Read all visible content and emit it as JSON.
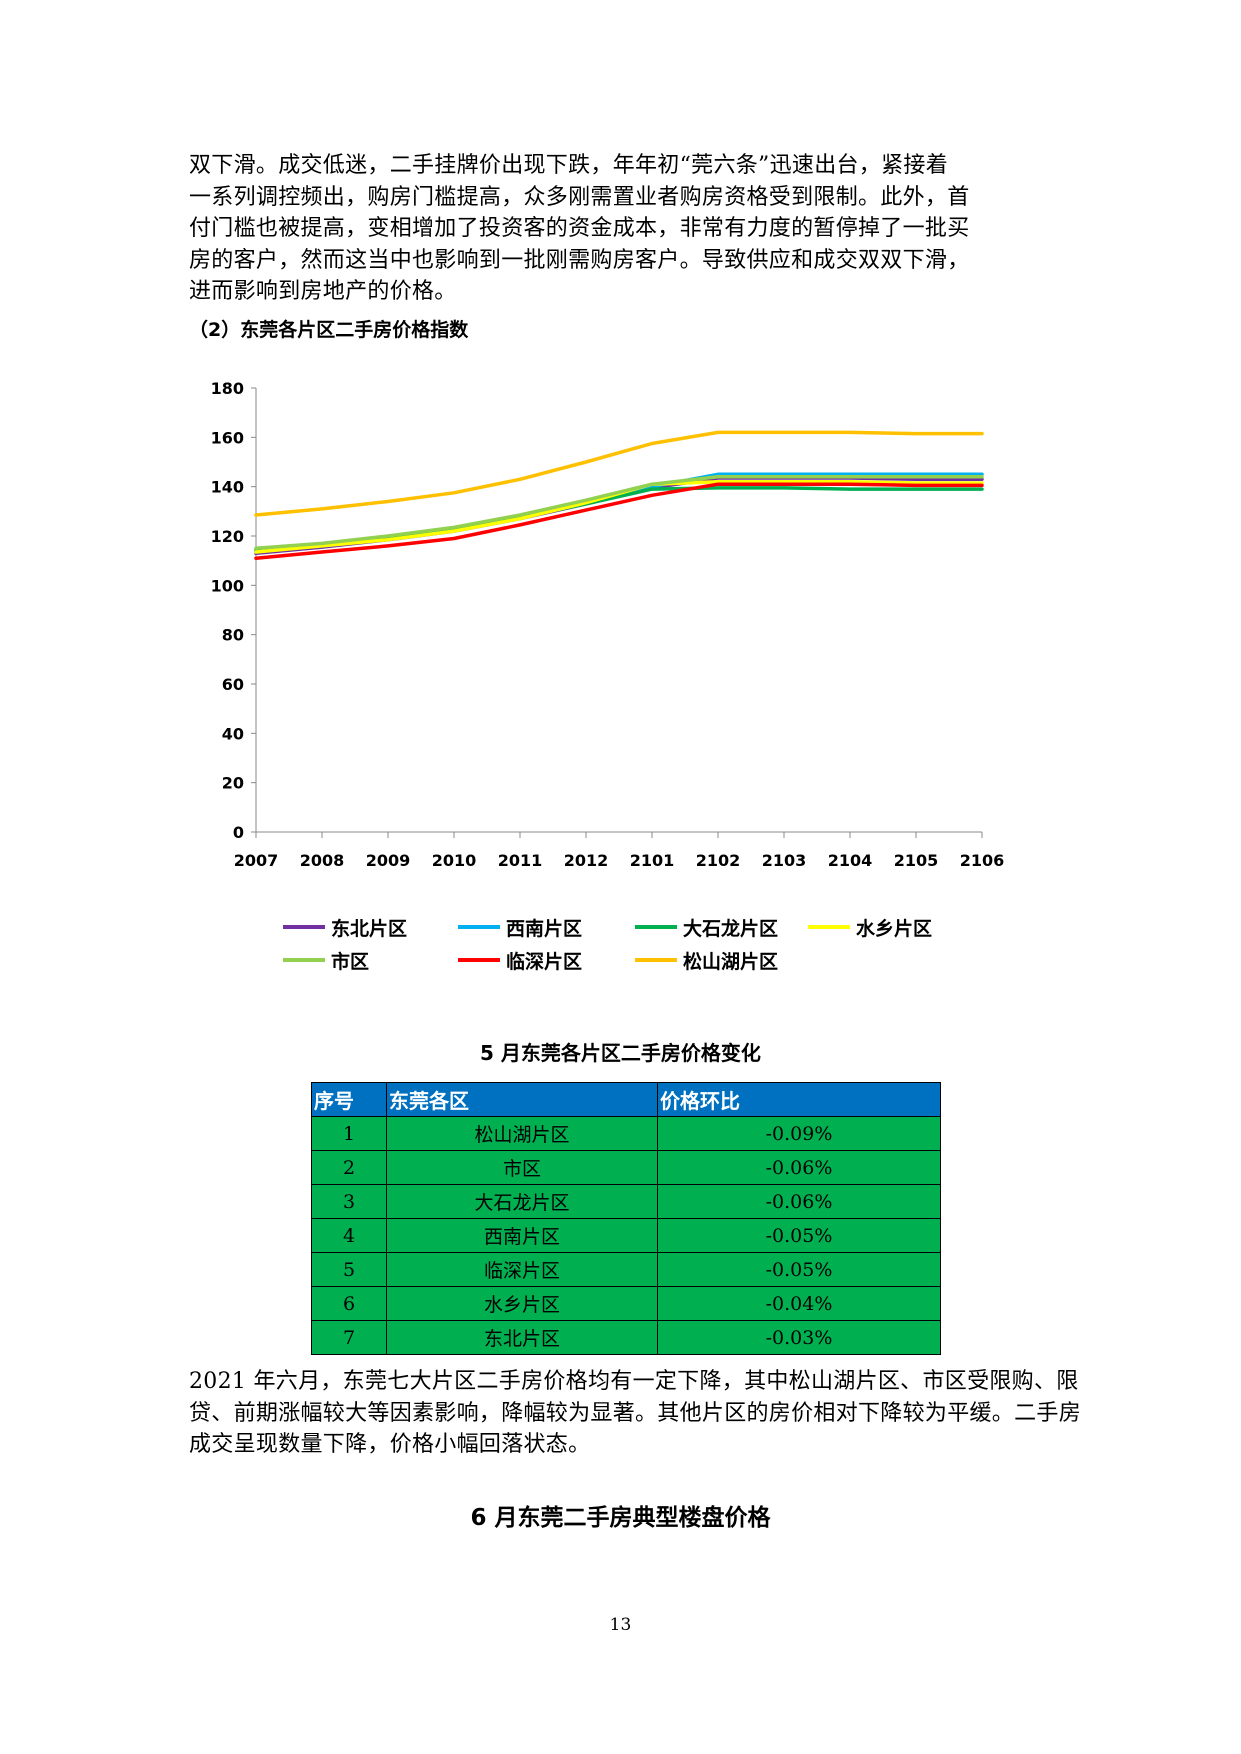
{
  "intro_lines": [
    "双下滑。成交低迷，二手挂牌价出现下跌，年年初“莞六条”迅速出台，紧接着",
    "一系列调控频出，购房门槛提高，众多刚需置业者购房资格受到限制。此外，首",
    "付门槛也被提高，变相增加了投资客的资金成本，非常有力度的暂停掉了一批买",
    "房的客户，然而这当中也影响到一批刚需购房客户。导致供应和成交双双下滑，",
    "进而影响到房地产的价格。"
  ],
  "subheading": "（2）东莞各片区二手房价格指数",
  "chart_data": {
    "type": "line",
    "title": "",
    "xlabel": "",
    "ylabel": "",
    "categories": [
      "2007",
      "2008",
      "2009",
      "2010",
      "2011",
      "2012",
      "2101",
      "2102",
      "2103",
      "2104",
      "2105",
      "2106"
    ],
    "ylim": [
      0,
      180
    ],
    "yticks": [
      0,
      20,
      40,
      60,
      80,
      100,
      120,
      140,
      160,
      180
    ],
    "grid": false,
    "legend_position": "bottom",
    "series": [
      {
        "name": "东北片区",
        "color": "#7030a0",
        "values": [
          113,
          115.5,
          118.5,
          122,
          127,
          133,
          139.5,
          143.5,
          143.5,
          143.5,
          143,
          143
        ]
      },
      {
        "name": "西南片区",
        "color": "#00b0f0",
        "values": [
          114,
          116.5,
          119,
          122.5,
          128,
          134,
          140,
          145,
          145,
          145,
          145,
          145
        ]
      },
      {
        "name": "大石龙片区",
        "color": "#00b050",
        "values": [
          114.5,
          116.5,
          119,
          122.5,
          127.5,
          133,
          139,
          139.5,
          139.5,
          139,
          139,
          139
        ]
      },
      {
        "name": "水乡片区",
        "color": "#ffff00",
        "values": [
          113.5,
          116,
          118.5,
          122,
          127,
          133.5,
          141,
          142,
          142,
          142,
          141.5,
          141.5
        ]
      },
      {
        "name": "市区",
        "color": "#92d050",
        "values": [
          115,
          117,
          120,
          123.5,
          128.5,
          134.5,
          141,
          144,
          144,
          144,
          144,
          144
        ]
      },
      {
        "name": "临深片区",
        "color": "#ff0000",
        "values": [
          111,
          113.5,
          116,
          119,
          124.5,
          130.5,
          136.5,
          141,
          141,
          141,
          140.5,
          140.5
        ]
      },
      {
        "name": "松山湖片区",
        "color": "#ffc000",
        "values": [
          128.5,
          131,
          134,
          137.5,
          143,
          150,
          157.5,
          162,
          162,
          162,
          161.5,
          161.5
        ]
      }
    ]
  },
  "table": {
    "title": "5 月东莞各片区二手房价格变化",
    "headers": [
      "序号",
      "东莞各区",
      "价格环比"
    ],
    "rows": [
      [
        "1",
        "松山湖片区",
        "-0.09%"
      ],
      [
        "2",
        "市区",
        "-0.06%"
      ],
      [
        "3",
        "大石龙片区",
        "-0.06%"
      ],
      [
        "4",
        "西南片区",
        "-0.05%"
      ],
      [
        "5",
        "临深片区",
        "-0.05%"
      ],
      [
        "6",
        "水乡片区",
        "-0.04%"
      ],
      [
        "7",
        "东北片区",
        "-0.03%"
      ]
    ]
  },
  "summary_lines": [
    "2021 年六月，东莞七大片区二手房价格均有一定下降，其中松山湖片区、市区受限购、限",
    "贷、前期涨幅较大等因素影响，降幅较为显著。其他片区的房价相对下降较为平缓。二手房",
    "成交呈现数量下降，价格小幅回落状态。"
  ],
  "section_title": "6 月东莞二手房典型楼盘价格",
  "page_number": "13"
}
